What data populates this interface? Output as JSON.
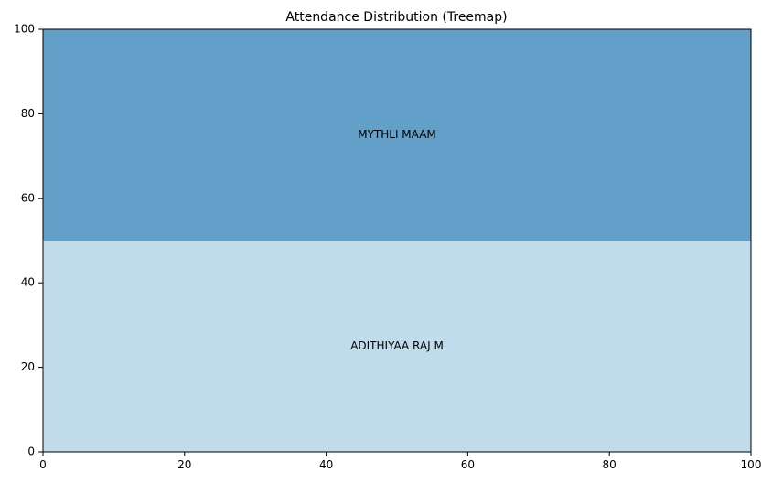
{
  "chart_data": {
    "type": "treemap",
    "title": "Attendance Distribution (Treemap)",
    "xlabel": "",
    "ylabel": "",
    "xlim": [
      0,
      100
    ],
    "ylim": [
      0,
      100
    ],
    "xticks": [
      0,
      20,
      40,
      60,
      80,
      100
    ],
    "yticks": [
      0,
      20,
      40,
      60,
      80,
      100
    ],
    "grid": false,
    "cells": [
      {
        "label": "ADITHIYAA RAJ M",
        "value": 50,
        "x": 0,
        "y": 0,
        "dx": 100,
        "dy": 50,
        "color": "#c0dcea"
      },
      {
        "label": "MYTHLI MAAM",
        "value": 50,
        "x": 0,
        "y": 50,
        "dx": 100,
        "dy": 50,
        "color": "#62a0ca"
      }
    ]
  }
}
